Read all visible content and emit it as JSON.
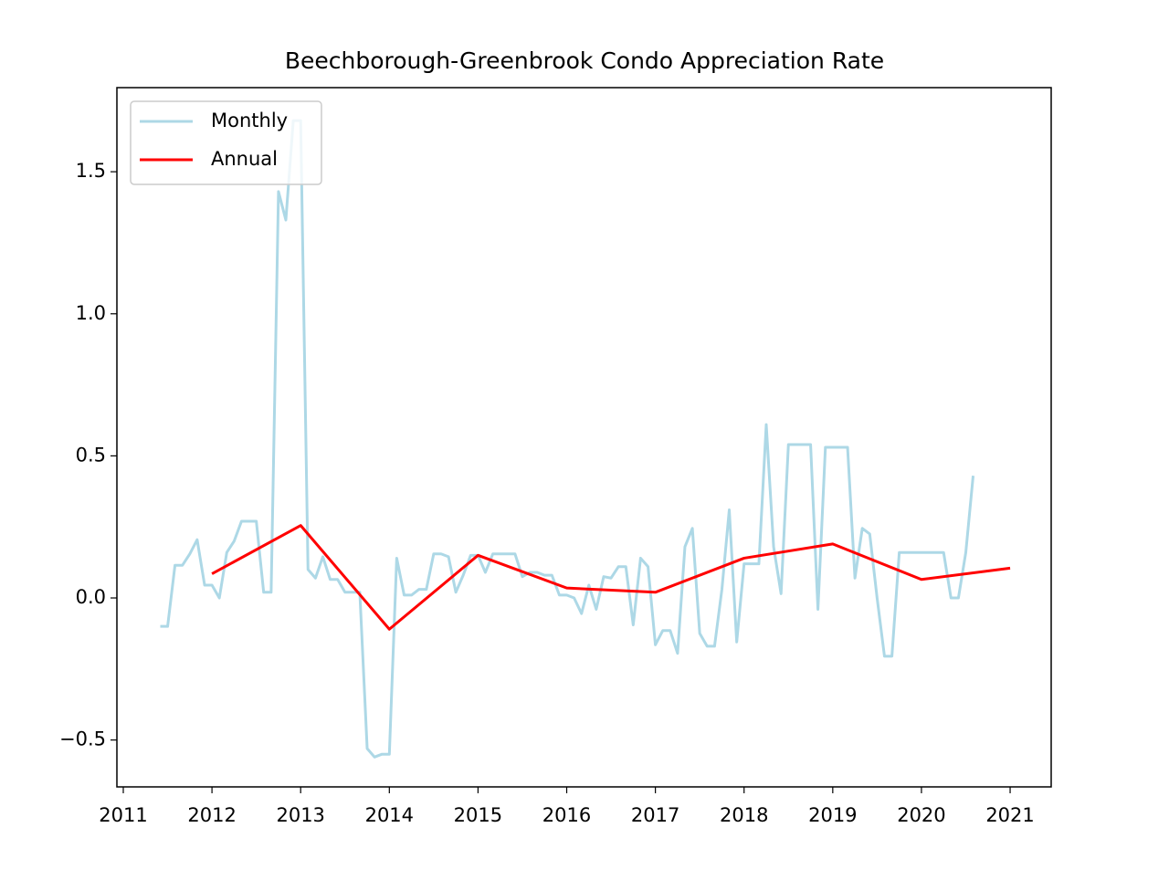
{
  "chart_data": {
    "type": "line",
    "title": "Beechborough-Greenbrook Condo Appreciation Rate",
    "xlim": [
      2010.928,
      2021.463
    ],
    "xticks": [
      2011,
      2012,
      2013,
      2014,
      2015,
      2016,
      2017,
      2018,
      2019,
      2020,
      2021
    ],
    "ylim": [
      -0.665,
      1.796
    ],
    "yticks": [
      {
        "value": -0.5,
        "label": "−0.5"
      },
      {
        "value": 0,
        "label": "0.0"
      },
      0.5,
      {
        "value": 1,
        "label": "1.0"
      },
      1.5
    ],
    "grid": false,
    "legend": "upper left",
    "series": [
      {
        "name": "Monthly",
        "color": "#add8e6",
        "x": [
          2011.417,
          2011.5,
          2011.583,
          2011.667,
          2011.75,
          2011.833,
          2011.917,
          2012.0,
          2012.083,
          2012.167,
          2012.25,
          2012.333,
          2012.417,
          2012.5,
          2012.583,
          2012.667,
          2012.75,
          2012.833,
          2012.917,
          2013.0,
          2013.083,
          2013.167,
          2013.25,
          2013.333,
          2013.417,
          2013.5,
          2013.583,
          2013.667,
          2013.75,
          2013.833,
          2013.917,
          2014.0,
          2014.083,
          2014.167,
          2014.25,
          2014.333,
          2014.417,
          2014.5,
          2014.583,
          2014.667,
          2014.75,
          2014.833,
          2014.917,
          2015.0,
          2015.083,
          2015.167,
          2015.25,
          2015.333,
          2015.417,
          2015.5,
          2015.583,
          2015.667,
          2015.75,
          2015.833,
          2015.917,
          2016.0,
          2016.083,
          2016.167,
          2016.25,
          2016.333,
          2016.417,
          2016.5,
          2016.583,
          2016.667,
          2016.75,
          2016.833,
          2016.917,
          2017.0,
          2017.083,
          2017.167,
          2017.25,
          2017.333,
          2017.417,
          2017.5,
          2017.583,
          2017.667,
          2017.75,
          2017.833,
          2017.917,
          2018.0,
          2018.083,
          2018.167,
          2018.25,
          2018.333,
          2018.417,
          2018.5,
          2018.583,
          2018.667,
          2018.75,
          2018.833,
          2018.917,
          2019.0,
          2019.083,
          2019.167,
          2019.25,
          2019.333,
          2019.417,
          2019.5,
          2019.583,
          2019.667,
          2019.75,
          2019.833,
          2019.917,
          2020.0,
          2020.083,
          2020.167,
          2020.25,
          2020.333,
          2020.417,
          2020.5,
          2020.583
        ],
        "values": [
          -0.1,
          -0.1,
          0.115,
          0.115,
          0.155,
          0.205,
          0.045,
          0.045,
          0.0,
          0.16,
          0.2,
          0.27,
          0.27,
          0.27,
          0.02,
          0.02,
          1.43,
          1.33,
          1.68,
          1.68,
          0.1,
          0.07,
          0.145,
          0.065,
          0.065,
          0.02,
          0.02,
          0.02,
          -0.53,
          -0.56,
          -0.55,
          -0.55,
          0.14,
          0.01,
          0.01,
          0.03,
          0.03,
          0.155,
          0.155,
          0.145,
          0.02,
          0.08,
          0.15,
          0.15,
          0.09,
          0.155,
          0.155,
          0.155,
          0.155,
          0.075,
          0.09,
          0.09,
          0.08,
          0.08,
          0.01,
          0.01,
          0.0,
          -0.055,
          0.045,
          -0.04,
          0.075,
          0.07,
          0.11,
          0.11,
          -0.095,
          0.14,
          0.11,
          -0.165,
          -0.115,
          -0.115,
          -0.195,
          0.18,
          0.245,
          -0.125,
          -0.17,
          -0.17,
          0.03,
          0.31,
          -0.155,
          0.12,
          0.12,
          0.12,
          0.61,
          0.18,
          0.015,
          0.54,
          0.54,
          0.54,
          0.54,
          -0.04,
          0.53,
          0.53,
          0.53,
          0.53,
          0.07,
          0.245,
          0.225,
          0.0,
          -0.205,
          -0.205,
          0.16,
          0.16,
          0.16,
          0.16,
          0.16,
          0.16,
          0.16,
          0.0,
          0.0,
          0.16,
          0.43
        ]
      },
      {
        "name": "Annual",
        "color": "#ff0000",
        "x": [
          2012,
          2013,
          2014,
          2015,
          2016,
          2017,
          2018,
          2019,
          2020,
          2021
        ],
        "values": [
          0.085,
          0.255,
          -0.11,
          0.15,
          0.035,
          0.02,
          0.14,
          0.19,
          0.065,
          0.105
        ]
      }
    ]
  }
}
